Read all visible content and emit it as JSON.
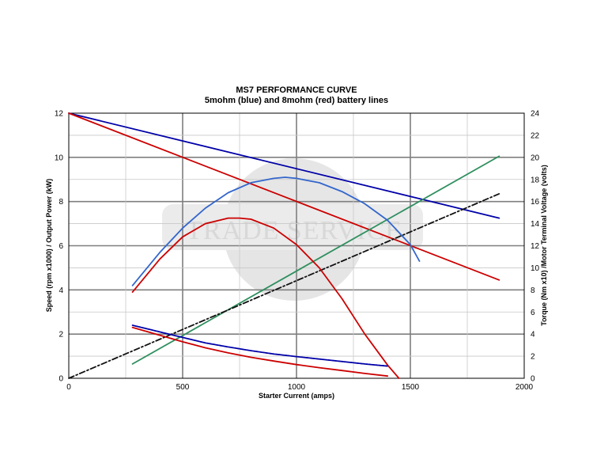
{
  "chart_data": {
    "type": "line",
    "title": "MS7 PERFORMANCE CURVE",
    "subtitle": "5mohm (blue) and 8mohm (red) battery lines",
    "xlabel": "Starter Current (amps)",
    "ylabel_left": "Speed (rpm x1000) / Output Power (kW)",
    "ylabel_right": "Torque (Nm x10) /Motor Terminal Voltage (volts)",
    "xlim": [
      0,
      2000
    ],
    "ylim_left": [
      0,
      12
    ],
    "ylim_right": [
      0,
      24
    ],
    "xticks": [
      "0",
      "500",
      "1000",
      "1500",
      "2000"
    ],
    "yticks_left": [
      "0",
      "2",
      "4",
      "6",
      "8",
      "10",
      "12"
    ],
    "yticks_right": [
      "0",
      "2",
      "4",
      "6",
      "8",
      "10",
      "12",
      "14",
      "16",
      "18",
      "20",
      "22",
      "24"
    ],
    "grid": true,
    "watermark": "TRADE SERVICE",
    "series": [
      {
        "color": "#0000a8",
        "axis": "right",
        "dash": "",
        "x": [
          0,
          1890
        ],
        "y": [
          24,
          14.5
        ]
      },
      {
        "color": "#cc0000",
        "axis": "right",
        "dash": "",
        "x": [
          0,
          1890
        ],
        "y": [
          24,
          8.9
        ]
      },
      {
        "color": "#2f8f5f",
        "axis": "right",
        "dash": "",
        "x": [
          280,
          1890
        ],
        "y": [
          1.3,
          20.1
        ]
      },
      {
        "color": "#111111",
        "axis": "right",
        "dash": "7,3,2,3",
        "x": [
          0,
          1890
        ],
        "y": [
          0,
          16.7
        ]
      },
      {
        "color": "#3366cc",
        "axis": "left",
        "dash": "",
        "x": [
          280,
          400,
          500,
          600,
          700,
          800,
          900,
          950,
          1000,
          1100,
          1200,
          1300,
          1400,
          1500,
          1540
        ],
        "y": [
          4.2,
          5.7,
          6.8,
          7.7,
          8.4,
          8.85,
          9.05,
          9.1,
          9.05,
          8.85,
          8.45,
          7.9,
          7.15,
          6.05,
          5.3
        ]
      },
      {
        "color": "#cc0000",
        "axis": "left",
        "dash": "",
        "x": [
          280,
          400,
          500,
          600,
          700,
          750,
          800,
          900,
          1000,
          1100,
          1200,
          1300,
          1400,
          1450
        ],
        "y": [
          3.9,
          5.4,
          6.4,
          7.0,
          7.25,
          7.25,
          7.2,
          6.8,
          6.05,
          5.0,
          3.6,
          2.0,
          0.6,
          0.0
        ]
      },
      {
        "color": "#0000a8",
        "axis": "left",
        "dash": "3,1",
        "x": [
          280,
          400,
          500,
          600,
          700,
          800,
          900,
          1000,
          1100,
          1200,
          1300,
          1400
        ],
        "y": [
          2.4,
          2.1,
          1.85,
          1.6,
          1.42,
          1.25,
          1.1,
          0.98,
          0.87,
          0.76,
          0.65,
          0.55
        ]
      },
      {
        "color": "#cc0000",
        "axis": "left",
        "dash": "",
        "x": [
          280,
          400,
          500,
          600,
          700,
          800,
          900,
          1000,
          1100,
          1200,
          1300,
          1400
        ],
        "y": [
          2.3,
          1.95,
          1.65,
          1.38,
          1.15,
          0.95,
          0.78,
          0.62,
          0.48,
          0.35,
          0.22,
          0.1
        ]
      }
    ]
  }
}
